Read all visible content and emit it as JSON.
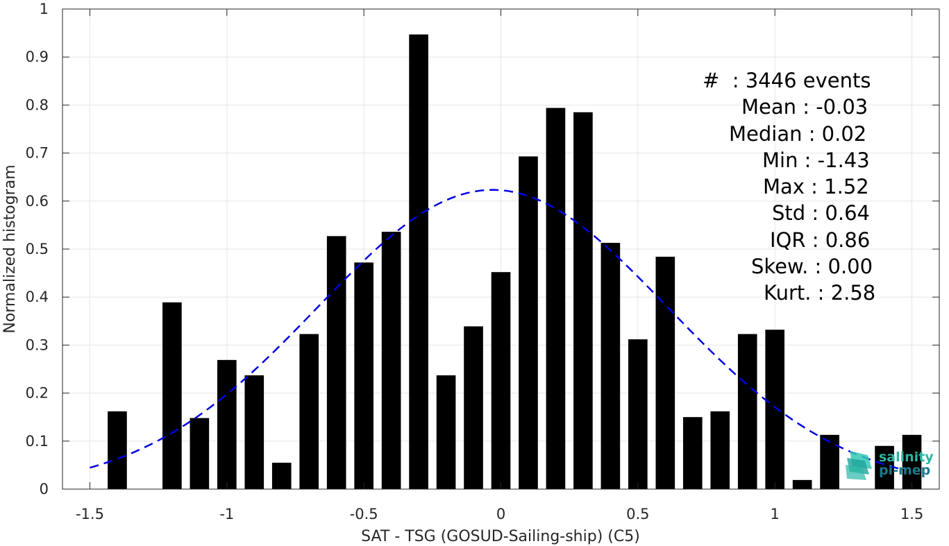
{
  "chart_data": {
    "type": "bar",
    "xlabel": "SAT - TSG (GOSUD-Sailing-ship) (C5)",
    "ylabel": "Normalized histogram",
    "xlim": [
      -1.6,
      1.6
    ],
    "ylim": [
      0,
      1
    ],
    "xticks": [
      -1.5,
      -1,
      -0.5,
      0,
      0.5,
      1,
      1.5
    ],
    "xtick_labels": [
      "-1.5",
      "-1",
      "-0.5",
      "0",
      "0.5",
      "1",
      "1.5"
    ],
    "yticks": [
      0,
      0.1,
      0.2,
      0.3,
      0.4,
      0.5,
      0.6,
      0.7,
      0.8,
      0.9,
      1
    ],
    "ytick_labels": [
      "0",
      "0.1",
      "0.2",
      "0.3",
      "0.4",
      "0.5",
      "0.6",
      "0.7",
      "0.8",
      "0.9",
      "1"
    ],
    "grid": true,
    "bar_color": "#000000",
    "bars": [
      {
        "x": -1.4,
        "value": 0.162
      },
      {
        "x": -1.2,
        "value": 0.389
      },
      {
        "x": -1.1,
        "value": 0.148
      },
      {
        "x": -1.0,
        "value": 0.269
      },
      {
        "x": -0.9,
        "value": 0.237
      },
      {
        "x": -0.8,
        "value": 0.055
      },
      {
        "x": -0.7,
        "value": 0.323
      },
      {
        "x": -0.6,
        "value": 0.527
      },
      {
        "x": -0.5,
        "value": 0.472
      },
      {
        "x": -0.4,
        "value": 0.536
      },
      {
        "x": -0.3,
        "value": 0.947
      },
      {
        "x": -0.2,
        "value": 0.237
      },
      {
        "x": -0.1,
        "value": 0.339
      },
      {
        "x": 0.0,
        "value": 0.452
      },
      {
        "x": 0.1,
        "value": 0.693
      },
      {
        "x": 0.2,
        "value": 0.794
      },
      {
        "x": 0.3,
        "value": 0.785
      },
      {
        "x": 0.4,
        "value": 0.513
      },
      {
        "x": 0.5,
        "value": 0.312
      },
      {
        "x": 0.6,
        "value": 0.484
      },
      {
        "x": 0.7,
        "value": 0.15
      },
      {
        "x": 0.8,
        "value": 0.162
      },
      {
        "x": 0.9,
        "value": 0.323
      },
      {
        "x": 1.0,
        "value": 0.332
      },
      {
        "x": 1.1,
        "value": 0.019
      },
      {
        "x": 1.2,
        "value": 0.113
      },
      {
        "x": 1.4,
        "value": 0.09
      },
      {
        "x": 1.5,
        "value": 0.113
      }
    ],
    "fit_curve": {
      "type": "gaussian",
      "style": "dashed",
      "color": "#0000e6",
      "mean": -0.03,
      "std": 0.64,
      "x_range": [
        -1.5,
        1.45
      ]
    }
  },
  "stats": {
    "count": "#  : 3446 events",
    "mean": "Mean : -0.03",
    "median": "Median : 0.02",
    "min": "Min : -1.43",
    "max": "Max : 1.52",
    "std": "Std : 0.64",
    "iqr": "IQR : 0.86",
    "skew": "Skew. : 0.00",
    "kurt": "Kurt. : 2.58"
  },
  "logo": {
    "line1": "salinity",
    "line2": "pi-mep",
    "color1": "#2bb5a0",
    "color2": "#1a7a8a"
  }
}
